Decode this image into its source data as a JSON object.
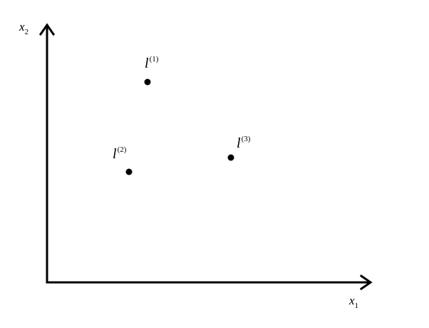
{
  "axes": {
    "x_label": {
      "base": "x",
      "sub": "1"
    },
    "y_label": {
      "base": "x",
      "sub": "2"
    }
  },
  "points": [
    {
      "base": "l",
      "sup": "(1)"
    },
    {
      "base": "l",
      "sup": "(2)"
    },
    {
      "base": "l",
      "sup": "(3)"
    }
  ],
  "colors": {
    "stroke": "#000000",
    "text_sub": "#1f5fbf"
  }
}
